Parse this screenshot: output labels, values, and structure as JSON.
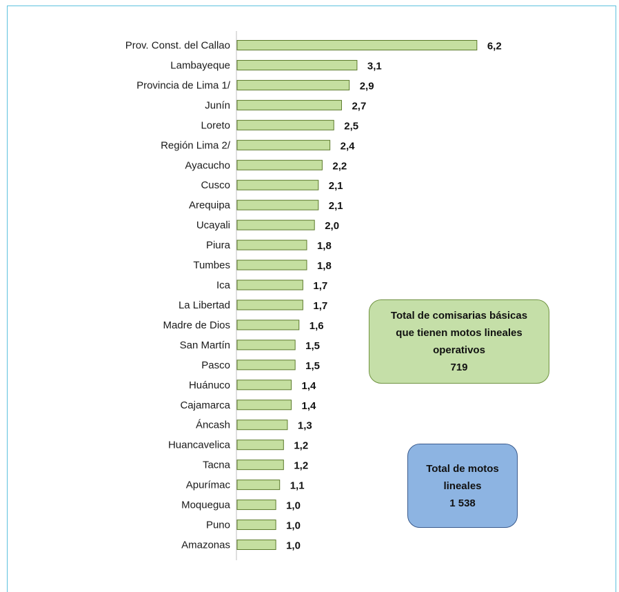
{
  "chart_data": {
    "type": "bar",
    "orientation": "horizontal",
    "categories": [
      "Prov. Const. del Callao",
      "Lambayeque",
      "Provincia de Lima 1/",
      "Junín",
      "Loreto",
      "Región Lima 2/",
      "Ayacucho",
      "Cusco",
      "Arequipa",
      "Ucayali",
      "Piura",
      "Tumbes",
      "Ica",
      "La Libertad",
      "Madre de Dios",
      "San Martín",
      "Pasco",
      "Huánuco",
      "Cajamarca",
      "Áncash",
      "Huancavelica",
      "Tacna",
      "Apurímac",
      "Moquegua",
      "Puno",
      "Amazonas"
    ],
    "values": [
      6.2,
      3.1,
      2.9,
      2.7,
      2.5,
      2.4,
      2.2,
      2.1,
      2.1,
      2.0,
      1.8,
      1.8,
      1.7,
      1.7,
      1.6,
      1.5,
      1.5,
      1.4,
      1.4,
      1.3,
      1.2,
      1.2,
      1.1,
      1.0,
      1.0,
      1.0
    ],
    "value_labels": [
      "6,2",
      "3,1",
      "2,9",
      "2,7",
      "2,5",
      "2,4",
      "2,2",
      "2,1",
      "2,1",
      "2,0",
      "1,8",
      "1,8",
      "1,7",
      "1,7",
      "1,6",
      "1,5",
      "1,5",
      "1,4",
      "1,4",
      "1,3",
      "1,2",
      "1,2",
      "1,1",
      "1,0",
      "1,0",
      "1,0"
    ],
    "xlim": [
      0,
      6.5
    ],
    "grid": false,
    "colors": {
      "bar_fill": "#c5dfa0",
      "bar_stroke": "#5b7a2a",
      "axis": "#bfbfbf"
    }
  },
  "annotations": {
    "comisarias": {
      "line1": "Total  de comisarias básicas",
      "line2": "que tienen motos lineales",
      "line3": "operativos",
      "value": "719",
      "color": "#c5dfa8"
    },
    "motos": {
      "line1": "Total  de motos",
      "line2": "lineales",
      "value": "1  538",
      "color": "#8db4e2"
    }
  }
}
